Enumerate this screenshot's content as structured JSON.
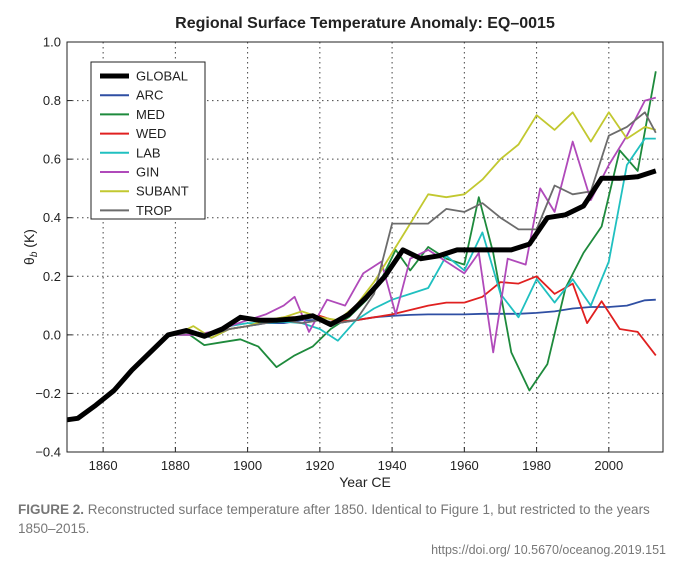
{
  "chart_data": {
    "type": "line",
    "title": "Regional Surface Temperature Anomaly: EQ–0015",
    "xlabel": "Year CE",
    "ylabel": "θ",
    "ylabel_sub": "b",
    "ylabel_unit": " (K)",
    "xlim": [
      1850,
      2015
    ],
    "ylim": [
      -0.4,
      1.0
    ],
    "xticks": [
      1860,
      1880,
      1900,
      1920,
      1940,
      1960,
      1980,
      2000
    ],
    "yticks": [
      -0.4,
      -0.2,
      0.0,
      0.2,
      0.4,
      0.6,
      0.8,
      1.0
    ],
    "ytick_labels": [
      "−0.4",
      "−0.2",
      "0.0",
      "0.2",
      "0.4",
      "0.6",
      "0.8",
      "1.0"
    ],
    "grid": true,
    "legend_position": "top-left",
    "series": [
      {
        "name": "ARC",
        "color": "#2f4fa3",
        "x": [
          1880,
          1885,
          1890,
          1895,
          1900,
          1905,
          1910,
          1915,
          1920,
          1925,
          1930,
          1935,
          1940,
          1945,
          1950,
          1955,
          1960,
          1965,
          1970,
          1975,
          1980,
          1985,
          1990,
          1995,
          2000,
          2005,
          2010,
          2013
        ],
        "y": [
          0.0,
          0.01,
          -0.01,
          0.02,
          0.03,
          0.04,
          0.04,
          0.05,
          0.05,
          0.04,
          0.05,
          0.06,
          0.065,
          0.068,
          0.07,
          0.07,
          0.07,
          0.072,
          0.072,
          0.072,
          0.075,
          0.08,
          0.09,
          0.095,
          0.095,
          0.1,
          0.118,
          0.12
        ]
      },
      {
        "name": "MED",
        "color": "#1e8a3c",
        "x": [
          1880,
          1884,
          1888,
          1893,
          1898,
          1903,
          1908,
          1913,
          1918,
          1923,
          1928,
          1933,
          1937,
          1941,
          1945,
          1950,
          1955,
          1960,
          1964,
          1968,
          1973,
          1978,
          1983,
          1988,
          1993,
          1998,
          2003,
          2008,
          2013
        ],
        "y": [
          0.0,
          0.0,
          -0.035,
          -0.025,
          -0.015,
          -0.04,
          -0.11,
          -0.07,
          -0.04,
          0.02,
          0.06,
          0.12,
          0.19,
          0.29,
          0.22,
          0.3,
          0.26,
          0.24,
          0.47,
          0.28,
          -0.06,
          -0.19,
          -0.1,
          0.16,
          0.28,
          0.37,
          0.63,
          0.56,
          0.9
        ]
      },
      {
        "name": "WED",
        "color": "#e02020",
        "x": [
          1880,
          1885,
          1890,
          1895,
          1900,
          1905,
          1910,
          1915,
          1920,
          1925,
          1930,
          1935,
          1940,
          1945,
          1950,
          1955,
          1960,
          1965,
          1970,
          1975,
          1980,
          1985,
          1990,
          1994,
          1998,
          2003,
          2008,
          2013
        ],
        "y": [
          0.0,
          0.01,
          0.0,
          0.02,
          0.03,
          0.045,
          0.06,
          0.06,
          0.065,
          0.045,
          0.05,
          0.06,
          0.07,
          0.085,
          0.1,
          0.11,
          0.11,
          0.13,
          0.18,
          0.175,
          0.2,
          0.14,
          0.175,
          0.04,
          0.115,
          0.02,
          0.01,
          -0.07
        ]
      },
      {
        "name": "LAB",
        "color": "#20c0c0",
        "x": [
          1880,
          1885,
          1890,
          1895,
          1900,
          1905,
          1910,
          1915,
          1920,
          1925,
          1930,
          1935,
          1940,
          1945,
          1950,
          1955,
          1960,
          1965,
          1970,
          1975,
          1980,
          1985,
          1990,
          1995,
          2000,
          2005,
          2010,
          2013
        ],
        "y": [
          0.0,
          0.01,
          0.0,
          0.03,
          0.04,
          0.04,
          0.045,
          0.04,
          0.02,
          -0.02,
          0.05,
          0.09,
          0.12,
          0.14,
          0.16,
          0.27,
          0.22,
          0.35,
          0.14,
          0.06,
          0.19,
          0.11,
          0.19,
          0.1,
          0.25,
          0.58,
          0.67,
          0.67
        ]
      },
      {
        "name": "GIN",
        "color": "#b04aba",
        "x": [
          1880,
          1885,
          1890,
          1895,
          1900,
          1905,
          1910,
          1913,
          1917,
          1922,
          1927,
          1932,
          1937,
          1941,
          1945,
          1950,
          1955,
          1960,
          1964,
          1968,
          1972,
          1977,
          1981,
          1985,
          1990,
          1995,
          2000,
          2005,
          2010,
          2013
        ],
        "y": [
          0.0,
          0.0,
          0.01,
          0.03,
          0.05,
          0.07,
          0.1,
          0.13,
          0.01,
          0.12,
          0.1,
          0.21,
          0.25,
          0.07,
          0.26,
          0.29,
          0.25,
          0.21,
          0.28,
          -0.06,
          0.26,
          0.24,
          0.5,
          0.42,
          0.66,
          0.46,
          0.58,
          0.68,
          0.8,
          0.81
        ]
      },
      {
        "name": "SUBANT",
        "color": "#c2c830",
        "x": [
          1880,
          1885,
          1890,
          1895,
          1900,
          1905,
          1910,
          1915,
          1920,
          1925,
          1930,
          1935,
          1940,
          1945,
          1950,
          1955,
          1960,
          1965,
          1970,
          1975,
          1980,
          1985,
          1990,
          1995,
          2000,
          2005,
          2010,
          2013
        ],
        "y": [
          0.0,
          0.03,
          -0.01,
          0.02,
          0.03,
          0.05,
          0.06,
          0.08,
          0.06,
          0.05,
          0.1,
          0.18,
          0.28,
          0.38,
          0.48,
          0.47,
          0.48,
          0.53,
          0.6,
          0.65,
          0.75,
          0.7,
          0.76,
          0.66,
          0.76,
          0.67,
          0.71,
          0.7
        ]
      },
      {
        "name": "TROP",
        "color": "#6c6c6c",
        "x": [
          1880,
          1885,
          1890,
          1895,
          1900,
          1905,
          1910,
          1915,
          1920,
          1925,
          1930,
          1935,
          1940,
          1945,
          1950,
          1955,
          1960,
          1965,
          1970,
          1975,
          1980,
          1985,
          1990,
          1995,
          2000,
          2005,
          2010,
          2013
        ],
        "y": [
          0.0,
          0.01,
          0.0,
          0.02,
          0.03,
          0.04,
          0.05,
          0.04,
          0.05,
          0.04,
          0.05,
          0.14,
          0.38,
          0.38,
          0.38,
          0.43,
          0.42,
          0.45,
          0.4,
          0.36,
          0.36,
          0.51,
          0.48,
          0.49,
          0.68,
          0.71,
          0.76,
          0.69
        ]
      },
      {
        "name": "GLOBAL",
        "color": "#000000",
        "x": [
          1850,
          1853,
          1858,
          1863,
          1868,
          1873,
          1878,
          1883,
          1888,
          1893,
          1898,
          1903,
          1908,
          1913,
          1918,
          1923,
          1928,
          1933,
          1938,
          1943,
          1948,
          1953,
          1958,
          1963,
          1968,
          1973,
          1978,
          1983,
          1988,
          1993,
          1998,
          2003,
          2008,
          2013
        ],
        "y": [
          -0.29,
          -0.285,
          -0.24,
          -0.19,
          -0.12,
          -0.06,
          0.0,
          0.015,
          -0.005,
          0.02,
          0.06,
          0.05,
          0.05,
          0.055,
          0.065,
          0.035,
          0.07,
          0.13,
          0.2,
          0.29,
          0.26,
          0.27,
          0.29,
          0.29,
          0.29,
          0.29,
          0.31,
          0.4,
          0.41,
          0.44,
          0.535,
          0.535,
          0.54,
          0.56
        ]
      }
    ],
    "legend_order": [
      "GLOBAL",
      "ARC",
      "MED",
      "WED",
      "LAB",
      "GIN",
      "SUBANT",
      "TROP"
    ]
  },
  "caption": {
    "label": "FIGURE 2.",
    "text": " Reconstructed surface temperature after 1850. Identical to Figure 1, but restricted to the years 1850–2015."
  },
  "doi": "https://doi.org/ 10.5670/oceanog.2019.151"
}
